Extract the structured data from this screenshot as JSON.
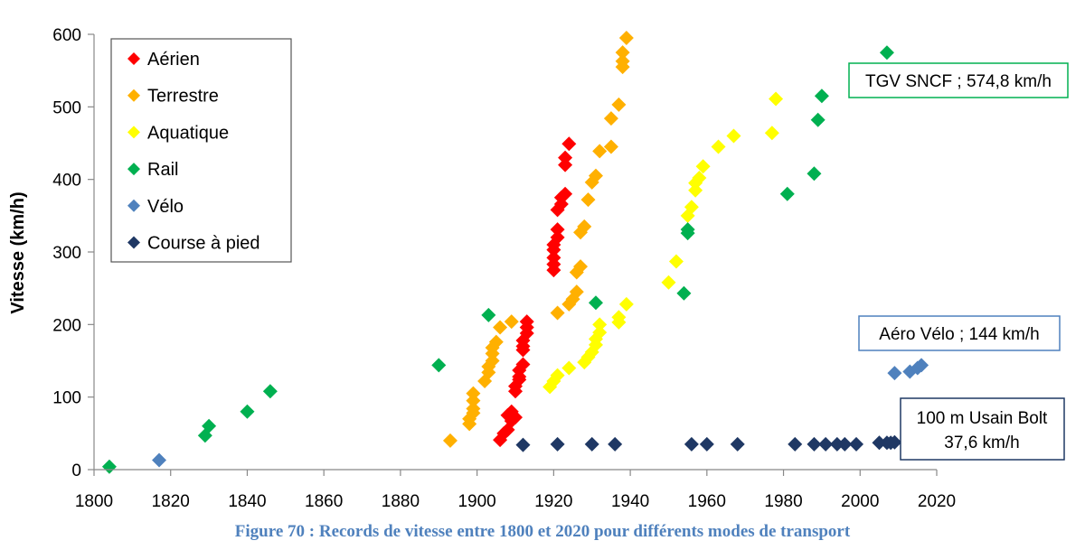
{
  "chart_data": {
    "type": "scatter",
    "title": "",
    "caption": "Figure 70 : Records de vitesse entre 1800 et 2020 pour différents modes de transport",
    "xlabel": "",
    "ylabel": "Vitesse (km/h)",
    "xlim": [
      1800,
      2020
    ],
    "ylim": [
      0,
      600
    ],
    "xticks": [
      "1800",
      "1820",
      "1840",
      "1860",
      "1880",
      "1900",
      "1920",
      "1940",
      "1960",
      "1980",
      "2000",
      "2020"
    ],
    "yticks": [
      "0",
      "100",
      "200",
      "300",
      "400",
      "500",
      "600"
    ],
    "legend_position": "top-left",
    "series": [
      {
        "name": "Aérien",
        "color": "#ff0000",
        "points": [
          [
            1906,
            41
          ],
          [
            1907,
            50
          ],
          [
            1908,
            55
          ],
          [
            1908,
            75
          ],
          [
            1909,
            80
          ],
          [
            1909,
            67
          ],
          [
            1910,
            72
          ],
          [
            1910,
            108
          ],
          [
            1910,
            115
          ],
          [
            1911,
            124
          ],
          [
            1911,
            128
          ],
          [
            1911,
            137
          ],
          [
            1912,
            145
          ],
          [
            1912,
            165
          ],
          [
            1912,
            170
          ],
          [
            1912,
            178
          ],
          [
            1913,
            188
          ],
          [
            1913,
            196
          ],
          [
            1913,
            204
          ],
          [
            1920,
            275
          ],
          [
            1920,
            283
          ],
          [
            1920,
            292
          ],
          [
            1920,
            303
          ],
          [
            1920,
            310
          ],
          [
            1921,
            320
          ],
          [
            1921,
            331
          ],
          [
            1921,
            358
          ],
          [
            1922,
            366
          ],
          [
            1922,
            375
          ],
          [
            1923,
            380
          ],
          [
            1923,
            420
          ],
          [
            1923,
            430
          ],
          [
            1924,
            449
          ]
        ]
      },
      {
        "name": "Terrestre",
        "color": "#ffb000",
        "points": [
          [
            1893,
            40
          ],
          [
            1898,
            63
          ],
          [
            1898,
            70
          ],
          [
            1899,
            78
          ],
          [
            1899,
            84
          ],
          [
            1899,
            95
          ],
          [
            1899,
            105
          ],
          [
            1902,
            122
          ],
          [
            1903,
            134
          ],
          [
            1903,
            142
          ],
          [
            1904,
            150
          ],
          [
            1904,
            160
          ],
          [
            1904,
            168
          ],
          [
            1905,
            176
          ],
          [
            1906,
            196
          ],
          [
            1909,
            204
          ],
          [
            1921,
            216
          ],
          [
            1924,
            228
          ],
          [
            1925,
            235
          ],
          [
            1926,
            245
          ],
          [
            1926,
            272
          ],
          [
            1927,
            280
          ],
          [
            1927,
            327
          ],
          [
            1928,
            335
          ],
          [
            1929,
            372
          ],
          [
            1930,
            396
          ],
          [
            1931,
            405
          ],
          [
            1932,
            439
          ],
          [
            1935,
            445
          ],
          [
            1935,
            484
          ],
          [
            1937,
            503
          ],
          [
            1938,
            555
          ],
          [
            1938,
            563
          ],
          [
            1938,
            575
          ],
          [
            1939,
            595
          ]
        ]
      },
      {
        "name": "Aquatique",
        "color": "#ffff00",
        "points": [
          [
            1919,
            114
          ],
          [
            1920,
            122
          ],
          [
            1921,
            130
          ],
          [
            1924,
            140
          ],
          [
            1928,
            148
          ],
          [
            1929,
            155
          ],
          [
            1930,
            162
          ],
          [
            1931,
            172
          ],
          [
            1931,
            180
          ],
          [
            1932,
            189
          ],
          [
            1932,
            200
          ],
          [
            1937,
            203
          ],
          [
            1937,
            210
          ],
          [
            1939,
            228
          ],
          [
            1950,
            258
          ],
          [
            1952,
            287
          ],
          [
            1955,
            350
          ],
          [
            1956,
            362
          ],
          [
            1957,
            385
          ],
          [
            1957,
            395
          ],
          [
            1958,
            402
          ],
          [
            1959,
            418
          ],
          [
            1963,
            445
          ],
          [
            1967,
            460
          ],
          [
            1977,
            464
          ],
          [
            1978,
            511
          ]
        ]
      },
      {
        "name": "Rail",
        "color": "#00b050",
        "points": [
          [
            1804,
            4
          ],
          [
            1829,
            47
          ],
          [
            1830,
            60
          ],
          [
            1840,
            80
          ],
          [
            1846,
            108
          ],
          [
            1890,
            144
          ],
          [
            1903,
            213
          ],
          [
            1931,
            230
          ],
          [
            1954,
            243
          ],
          [
            1955,
            326
          ],
          [
            1955,
            331
          ],
          [
            1981,
            380
          ],
          [
            1988,
            408
          ],
          [
            1989,
            482
          ],
          [
            1990,
            515
          ],
          [
            2007,
            574.8
          ]
        ]
      },
      {
        "name": "Vélo",
        "color": "#4f81bd",
        "points": [
          [
            1817,
            13
          ],
          [
            2009,
            133
          ],
          [
            2013,
            135
          ],
          [
            2015,
            140
          ],
          [
            2016,
            144
          ]
        ]
      },
      {
        "name": "Course à pied",
        "color": "#1f3864",
        "points": [
          [
            1912,
            34
          ],
          [
            1921,
            35
          ],
          [
            1930,
            35
          ],
          [
            1936,
            35
          ],
          [
            1956,
            35
          ],
          [
            1960,
            35
          ],
          [
            1968,
            35
          ],
          [
            1983,
            35
          ],
          [
            1988,
            35
          ],
          [
            1991,
            35
          ],
          [
            1994,
            35
          ],
          [
            1996,
            35
          ],
          [
            1999,
            35
          ],
          [
            2005,
            37
          ],
          [
            2007,
            37
          ],
          [
            2008,
            37
          ],
          [
            2009,
            37.6
          ]
        ]
      }
    ],
    "annotations": [
      {
        "label": "TGV SNCF ; 574,8 km/h",
        "lines": [
          "TGV SNCF ; 574,8 km/h"
        ],
        "border_color": "#00b050"
      },
      {
        "label": "Aéro Vélo ; 144 km/h",
        "lines": [
          "Aéro Vélo ; 144 km/h"
        ],
        "border_color": "#4f81bd"
      },
      {
        "label": "100 m Usain Bolt 37,6 km/h",
        "lines": [
          "100 m Usain Bolt",
          "37,6 km/h"
        ],
        "border_color": "#1f3864"
      }
    ]
  }
}
